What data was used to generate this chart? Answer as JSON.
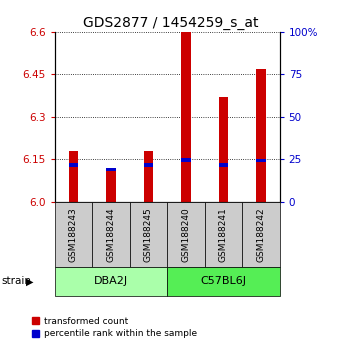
{
  "title": "GDS2877 / 1454259_s_at",
  "samples": [
    "GSM188243",
    "GSM188244",
    "GSM188245",
    "GSM188240",
    "GSM188241",
    "GSM188242"
  ],
  "group_colors": [
    "#aaffaa",
    "#55ee55"
  ],
  "transformed_counts": [
    6.18,
    6.12,
    6.18,
    6.6,
    6.37,
    6.47
  ],
  "percentile_values": [
    6.13,
    6.115,
    6.13,
    6.148,
    6.13,
    6.145
  ],
  "ylim_left": [
    6.0,
    6.6
  ],
  "ylim_right": [
    0,
    100
  ],
  "yticks_left": [
    6.0,
    6.15,
    6.3,
    6.45,
    6.6
  ],
  "yticks_right": [
    0,
    25,
    50,
    75,
    100
  ],
  "left_color": "#cc0000",
  "right_color": "#0000cc",
  "bar_color": "#cc0000",
  "blue_color": "#0000cc",
  "sample_bg": "#cccccc",
  "title_fontsize": 10,
  "tick_fontsize": 7.5,
  "label_fontsize": 7
}
